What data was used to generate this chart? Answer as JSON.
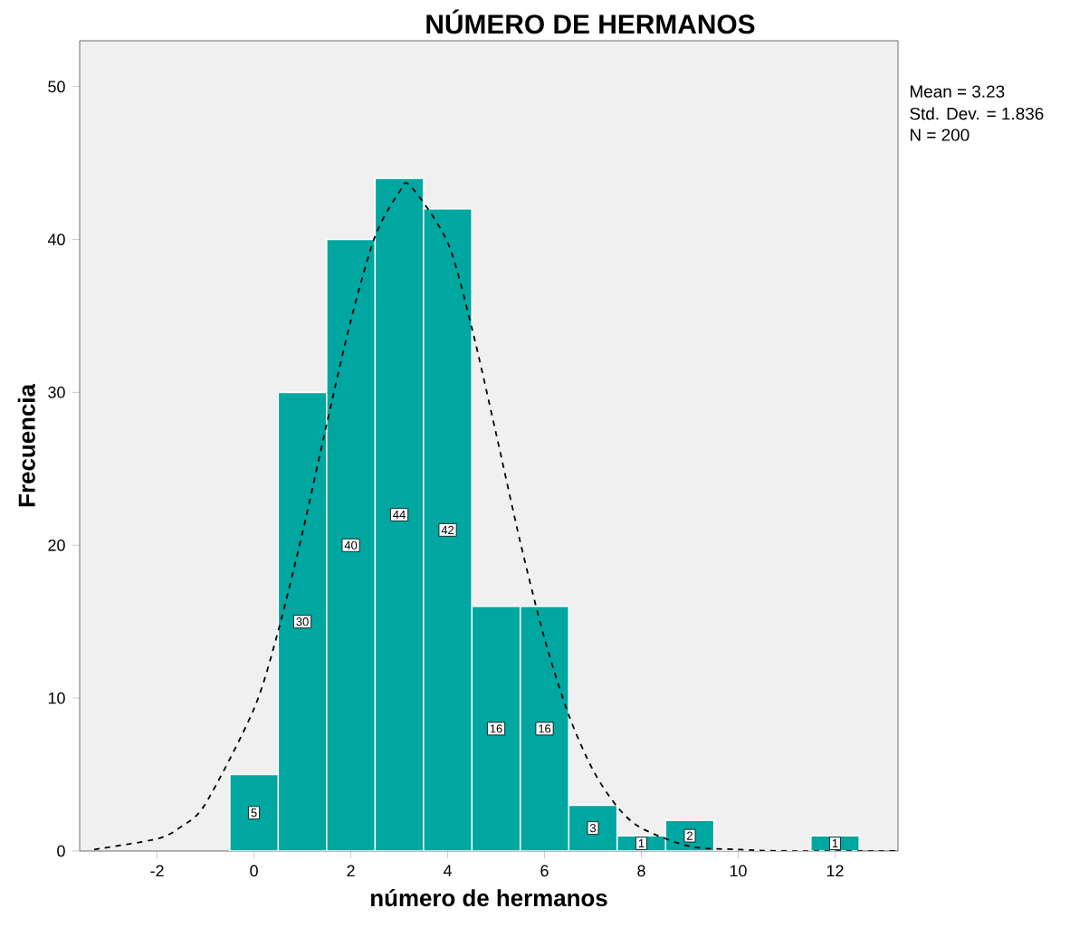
{
  "chart_data": {
    "type": "histogram",
    "title": "NÚMERO DE HERMANOS",
    "xlabel": "número de hermanos",
    "ylabel": "Frecuencia",
    "annotations": [
      "Mean = 3.23",
      "Std. Dev. = 1.836",
      "N = 200"
    ],
    "bins": [
      -0.5,
      0.5,
      1.5,
      2.5,
      3.5,
      4.5,
      5.5,
      6.5,
      7.5,
      8.5,
      9.5,
      10.5,
      11.5,
      12.5
    ],
    "series": [
      {
        "color": "#00a6a0",
        "values": [
          5,
          30,
          40,
          44,
          42,
          16,
          16,
          3,
          1,
          2,
          0,
          0,
          1
        ],
        "value_labels": [
          "5",
          "30",
          "40",
          "44",
          "42",
          "16",
          "16",
          "3",
          "1",
          "2",
          null,
          null,
          "1"
        ]
      },
      {
        "type": "line",
        "color": "#000000",
        "line_style": "dashed",
        "x": [
          -3.3,
          -2,
          -1.5,
          -1,
          0,
          0.5,
          1,
          1.5,
          2,
          2.5,
          3,
          3.23,
          4,
          4.5,
          5,
          5.5,
          6,
          6.5,
          7,
          7.5,
          8,
          9,
          10,
          11,
          13.3
        ],
        "values": [
          0.1,
          0.8,
          1.6,
          3.1,
          9.3,
          14.4,
          20.8,
          27.9,
          34.7,
          40.2,
          43.1,
          43.5,
          39.8,
          34.2,
          27.3,
          20.2,
          13.9,
          8.9,
          5.3,
          2.9,
          1.5,
          0.3,
          0.1,
          0,
          0
        ]
      }
    ],
    "xlim": [
      -3.6,
      13.3
    ],
    "ylim": [
      0,
      53
    ],
    "xticks": [
      -2,
      0,
      2,
      4,
      6,
      8,
      10,
      12
    ],
    "yticks": [
      0,
      10,
      20,
      30,
      40,
      50
    ]
  }
}
